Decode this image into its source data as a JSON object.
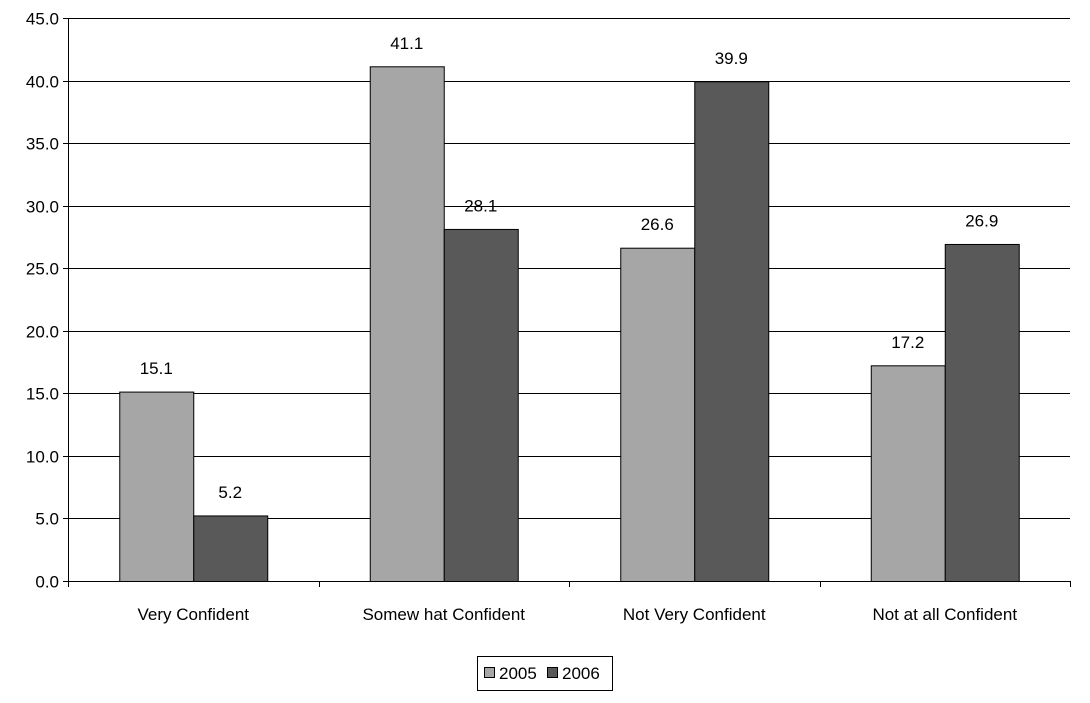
{
  "chart_data": {
    "type": "bar",
    "categories": [
      "Very Confident",
      "Somew hat Confident",
      "Not Very Confident",
      "Not at all Confident"
    ],
    "series": [
      {
        "name": "2005",
        "values": [
          15.1,
          41.1,
          26.6,
          17.2
        ],
        "color": "#A6A6A6"
      },
      {
        "name": "2006",
        "values": [
          5.2,
          28.1,
          39.9,
          26.9
        ],
        "color": "#595959"
      }
    ],
    "data_labels": [
      [
        "15.1",
        "41.1",
        "26.6",
        "17.2"
      ],
      [
        "5.2",
        "28.1",
        "39.9",
        "26.9"
      ]
    ],
    "ylim": [
      0,
      45
    ],
    "ytick_labels": [
      "0.0",
      "5.0",
      "10.0",
      "15.0",
      "20.0",
      "25.0",
      "30.0",
      "35.0",
      "40.0",
      "45.0"
    ],
    "title": "",
    "xlabel": "",
    "ylabel": "",
    "grid": true,
    "legend_position": "bottom-center",
    "colors": {
      "gridline": "#000000",
      "bar_border": "#000000",
      "background": "#FFFFFF"
    }
  }
}
